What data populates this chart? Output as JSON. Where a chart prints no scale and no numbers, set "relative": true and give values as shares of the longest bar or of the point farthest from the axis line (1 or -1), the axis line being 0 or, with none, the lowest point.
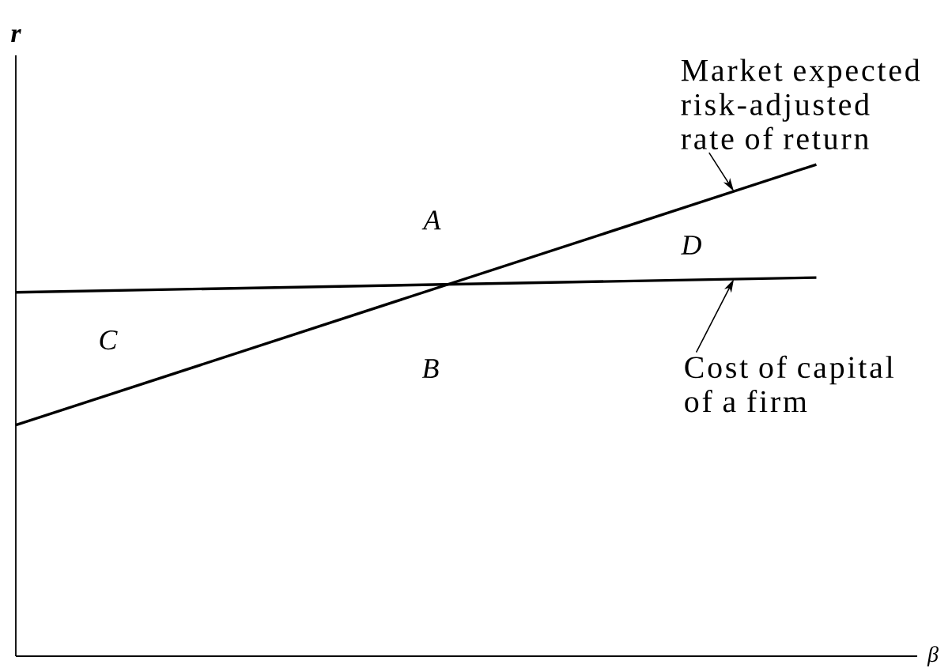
{
  "chart_data": {
    "type": "line",
    "xlabel": "β",
    "ylabel": "r",
    "categories": [
      null,
      null
    ],
    "relative": true,
    "series": [
      {
        "name": "Cost of capital of a firm",
        "color": "#000000",
        "values": [
          0.74,
          0.77
        ]
      },
      {
        "name": "Market expected risk-adjusted rate of return",
        "color": "#000000",
        "values": [
          0.47,
          1
        ]
      }
    ],
    "annotations": [
      "A",
      "B",
      "C",
      "D"
    ]
  }
}
